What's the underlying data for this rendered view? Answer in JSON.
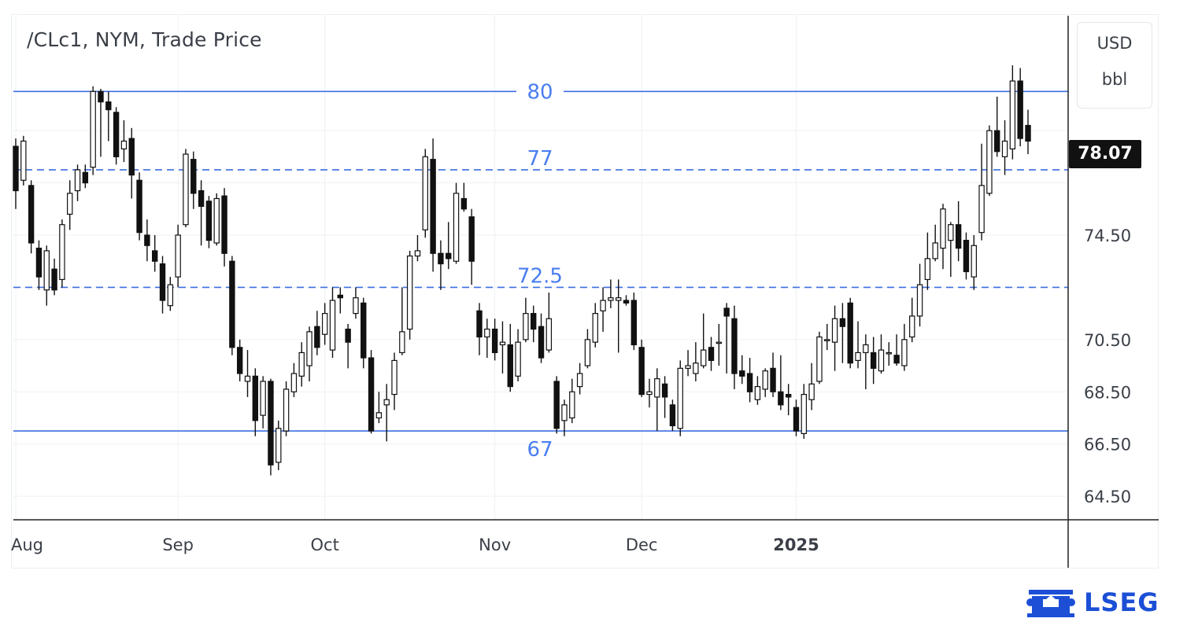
{
  "header": {
    "title": "/CLc1, NYM, Trade Price",
    "currency": "USD",
    "volume_unit": "bbl",
    "last_price": "78.07"
  },
  "branding": {
    "logo_text": "LSEG"
  },
  "colors": {
    "grid": "#eef0f3",
    "level_line": "#3d6fe0",
    "level_label": "#4a7ef0",
    "candle_body": "#111111",
    "axis": "#222222",
    "logo": "#1c4fd6"
  },
  "chart_data": {
    "type": "candlestick",
    "title": "/CLc1, NYM, Trade Price",
    "y_axis": {
      "position": "right",
      "range": [
        63.6,
        82.9
      ],
      "ticks": [
        64.5,
        66.5,
        68.5,
        70.5,
        74.5
      ],
      "tick_labels": [
        "64.50",
        "66.50",
        "68.50",
        "70.50",
        "74.50"
      ]
    },
    "x_axis": {
      "month_labels": [
        {
          "label": "Aug",
          "index": 0
        },
        {
          "label": "Sep",
          "index": 21
        },
        {
          "label": "Oct",
          "index": 40
        },
        {
          "label": "Nov",
          "index": 62
        },
        {
          "label": "Dec",
          "index": 81
        },
        {
          "label": "2025",
          "index": 101
        }
      ]
    },
    "levels": [
      {
        "value": 80,
        "label": "80",
        "style": "solid"
      },
      {
        "value": 77,
        "label": "77",
        "style": "dashed"
      },
      {
        "value": 72.5,
        "label": "72.5",
        "style": "dashed"
      },
      {
        "value": 67,
        "label": "67",
        "style": "solid"
      }
    ],
    "last_price": 78.07,
    "candles": [
      [
        77.9,
        76.2,
        78.2,
        75.5
      ],
      [
        76.6,
        78.1,
        78.3,
        76.4
      ],
      [
        76.4,
        74.2,
        76.6,
        73.8
      ],
      [
        74.0,
        72.9,
        74.3,
        72.4
      ],
      [
        72.4,
        73.9,
        74.1,
        71.8
      ],
      [
        73.2,
        72.4,
        73.6,
        72.2
      ],
      [
        72.8,
        74.9,
        75.1,
        72.5
      ],
      [
        75.3,
        76.1,
        76.6,
        74.7
      ],
      [
        76.2,
        77.0,
        77.2,
        75.8
      ],
      [
        76.9,
        76.5,
        77.2,
        76.3
      ],
      [
        77.1,
        80.0,
        80.2,
        76.8
      ],
      [
        80.0,
        79.6,
        80.1,
        77.5
      ],
      [
        79.6,
        79.3,
        80.0,
        78.1
      ],
      [
        79.2,
        77.5,
        79.4,
        77.2
      ],
      [
        77.8,
        78.1,
        78.9,
        77.3
      ],
      [
        78.2,
        76.8,
        78.6,
        75.9
      ],
      [
        76.6,
        74.6,
        76.9,
        74.3
      ],
      [
        74.5,
        74.1,
        75.1,
        73.5
      ],
      [
        73.9,
        73.5,
        74.5,
        73.1
      ],
      [
        73.4,
        72.0,
        73.7,
        71.5
      ],
      [
        71.8,
        72.6,
        72.9,
        71.6
      ],
      [
        72.9,
        74.5,
        74.9,
        72.5
      ],
      [
        74.9,
        77.6,
        77.8,
        74.8
      ],
      [
        77.4,
        76.1,
        77.7,
        75.5
      ],
      [
        76.2,
        75.6,
        76.6,
        74.1
      ],
      [
        75.8,
        74.3,
        76.0,
        74.0
      ],
      [
        74.2,
        75.9,
        76.1,
        74.1
      ],
      [
        76.0,
        73.8,
        76.3,
        73.3
      ],
      [
        73.5,
        70.2,
        73.7,
        69.9
      ],
      [
        70.2,
        69.2,
        70.5,
        68.9
      ],
      [
        68.9,
        69.1,
        70.1,
        68.3
      ],
      [
        69.1,
        67.4,
        69.4,
        66.8
      ],
      [
        67.6,
        68.9,
        69.1,
        67.1
      ],
      [
        68.9,
        65.7,
        69.0,
        65.3
      ],
      [
        65.8,
        67.1,
        67.4,
        65.5
      ],
      [
        67.0,
        68.6,
        68.9,
        66.8
      ],
      [
        68.5,
        69.2,
        69.6,
        68.3
      ],
      [
        69.1,
        70.0,
        70.4,
        68.7
      ],
      [
        69.5,
        70.8,
        71.0,
        68.9
      ],
      [
        71.0,
        70.2,
        71.6,
        69.9
      ],
      [
        70.7,
        71.5,
        71.9,
        70.3
      ],
      [
        70.1,
        72.0,
        72.5,
        69.8
      ],
      [
        72.2,
        72.1,
        72.5,
        71.5
      ],
      [
        70.9,
        70.4,
        71.1,
        69.4
      ],
      [
        71.5,
        72.1,
        72.5,
        71.3
      ],
      [
        71.9,
        69.8,
        72.1,
        69.4
      ],
      [
        69.8,
        67.0,
        70.1,
        66.9
      ],
      [
        67.5,
        67.7,
        68.5,
        67.3
      ],
      [
        68.0,
        68.2,
        68.8,
        66.6
      ],
      [
        68.4,
        69.7,
        70.0,
        67.8
      ],
      [
        70.0,
        70.8,
        72.5,
        69.9
      ],
      [
        70.9,
        73.7,
        73.9,
        70.5
      ],
      [
        73.7,
        73.9,
        74.5,
        73.5
      ],
      [
        74.7,
        77.5,
        77.8,
        74.4
      ],
      [
        77.4,
        73.8,
        78.2,
        73.1
      ],
      [
        73.8,
        73.4,
        74.3,
        72.4
      ],
      [
        73.8,
        73.6,
        75.0,
        73.2
      ],
      [
        73.5,
        76.1,
        76.5,
        73.4
      ],
      [
        75.9,
        75.5,
        76.5,
        75.4
      ],
      [
        75.2,
        73.5,
        75.5,
        72.6
      ],
      [
        71.6,
        70.6,
        71.9,
        69.9
      ],
      [
        70.6,
        70.9,
        71.3,
        69.8
      ],
      [
        70.9,
        70.0,
        71.3,
        69.7
      ],
      [
        70.3,
        70.4,
        71.2,
        69.2
      ],
      [
        70.3,
        68.7,
        71.1,
        68.5
      ],
      [
        69.1,
        70.4,
        70.9,
        68.9
      ],
      [
        70.5,
        71.5,
        72.1,
        70.4
      ],
      [
        71.5,
        70.9,
        71.8,
        70.4
      ],
      [
        71.0,
        69.8,
        71.5,
        69.6
      ],
      [
        70.1,
        71.3,
        72.3,
        70.0
      ],
      [
        68.9,
        67.1,
        69.1,
        66.9
      ],
      [
        67.4,
        68.0,
        68.2,
        66.8
      ],
      [
        67.5,
        68.5,
        69.0,
        67.3
      ],
      [
        68.7,
        69.2,
        69.6,
        68.4
      ],
      [
        69.5,
        70.5,
        70.9,
        69.4
      ],
      [
        70.4,
        71.5,
        71.9,
        70.2
      ],
      [
        71.6,
        72.0,
        72.5,
        70.8
      ],
      [
        72.0,
        72.1,
        72.8,
        71.7
      ],
      [
        72.0,
        72.1,
        72.8,
        70.0
      ],
      [
        72.0,
        71.9,
        72.2,
        71.8
      ],
      [
        72.0,
        70.3,
        72.3,
        70.1
      ],
      [
        70.2,
        68.4,
        70.5,
        68.3
      ],
      [
        68.4,
        68.5,
        69.0,
        67.9
      ],
      [
        68.3,
        69.0,
        69.4,
        67.0
      ],
      [
        68.8,
        68.3,
        69.1,
        67.5
      ],
      [
        68.0,
        67.2,
        68.2,
        67.0
      ],
      [
        67.1,
        69.4,
        69.7,
        66.8
      ],
      [
        69.4,
        69.5,
        70.1,
        69.1
      ],
      [
        69.2,
        69.6,
        70.4,
        68.9
      ],
      [
        69.5,
        70.1,
        71.5,
        69.4
      ],
      [
        70.2,
        69.7,
        70.6,
        69.3
      ],
      [
        70.4,
        70.4,
        71.1,
        69.5
      ],
      [
        71.7,
        71.4,
        71.9,
        69.2
      ],
      [
        71.3,
        69.2,
        71.8,
        68.6
      ],
      [
        69.3,
        69.1,
        69.9,
        68.8
      ],
      [
        69.2,
        68.5,
        69.8,
        68.1
      ],
      [
        68.2,
        68.7,
        69.1,
        68.0
      ],
      [
        68.6,
        69.3,
        69.4,
        68.3
      ],
      [
        69.4,
        68.5,
        70.0,
        68.3
      ],
      [
        68.5,
        68.0,
        69.9,
        67.8
      ],
      [
        68.4,
        68.3,
        68.8,
        67.6
      ],
      [
        67.9,
        67.0,
        68.2,
        66.8
      ],
      [
        66.9,
        68.4,
        68.8,
        66.7
      ],
      [
        68.2,
        68.8,
        69.6,
        67.8
      ],
      [
        68.9,
        70.6,
        70.8,
        68.8
      ],
      [
        70.5,
        70.5,
        71.1,
        70.1
      ],
      [
        70.4,
        71.3,
        71.8,
        69.3
      ],
      [
        71.3,
        71.0,
        71.9,
        69.6
      ],
      [
        71.9,
        69.6,
        72.1,
        69.4
      ],
      [
        69.7,
        70.0,
        71.2,
        69.4
      ],
      [
        70.0,
        70.3,
        70.7,
        68.6
      ],
      [
        70.0,
        69.4,
        70.6,
        68.8
      ],
      [
        69.3,
        70.1,
        70.7,
        69.2
      ],
      [
        70.0,
        70.0,
        70.4,
        69.5
      ],
      [
        69.9,
        69.6,
        70.7,
        69.5
      ],
      [
        69.5,
        70.5,
        71.1,
        69.3
      ],
      [
        70.6,
        71.4,
        72.1,
        70.4
      ],
      [
        71.4,
        72.6,
        73.4,
        71.0
      ],
      [
        72.8,
        73.6,
        74.6,
        72.4
      ],
      [
        73.6,
        74.2,
        74.9,
        73.5
      ],
      [
        74.0,
        75.5,
        75.7,
        73.2
      ],
      [
        74.3,
        74.9,
        75.0,
        72.9
      ],
      [
        74.9,
        74.0,
        75.8,
        73.5
      ],
      [
        74.3,
        73.1,
        74.6,
        72.8
      ],
      [
        72.9,
        74.1,
        74.5,
        72.4
      ],
      [
        74.6,
        76.4,
        78.0,
        74.3
      ],
      [
        76.1,
        78.5,
        78.7,
        76.0
      ],
      [
        78.5,
        77.7,
        79.8,
        77.5
      ],
      [
        77.5,
        78.1,
        78.9,
        76.8
      ],
      [
        77.8,
        80.4,
        81.0,
        77.4
      ],
      [
        80.4,
        78.2,
        80.9,
        77.9
      ],
      [
        78.7,
        78.1,
        79.3,
        77.6
      ]
    ]
  }
}
